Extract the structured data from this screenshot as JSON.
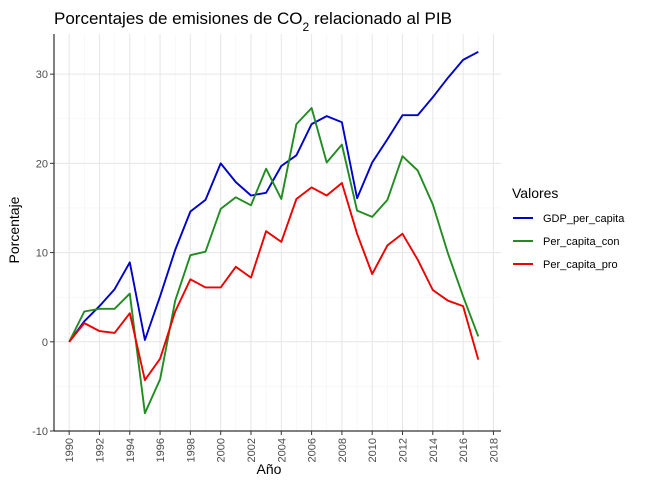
{
  "chart_data": {
    "type": "line",
    "title_prefix": "Porcentajes de emisiones de CO",
    "title_subscript": "2",
    "title_suffix": " relacionado al PIB",
    "xlabel": "Año",
    "ylabel": "Porcentaje",
    "xlim": [
      1989,
      2018.5
    ],
    "ylim": [
      -10,
      34.5
    ],
    "x_ticks": [
      1990,
      1992,
      1994,
      1996,
      1998,
      2000,
      2002,
      2004,
      2006,
      2008,
      2010,
      2012,
      2014,
      2016,
      2018
    ],
    "y_ticks": [
      -10,
      0,
      10,
      20,
      30
    ],
    "grid": true,
    "legend_title": "Valores",
    "legend_position": "right",
    "x": [
      1990,
      1991,
      1992,
      1993,
      1994,
      1995,
      1996,
      1997,
      1998,
      1999,
      2000,
      2001,
      2002,
      2003,
      2004,
      2005,
      2006,
      2007,
      2008,
      2009,
      2010,
      2011,
      2012,
      2013,
      2014,
      2015,
      2016,
      2017
    ],
    "series": [
      {
        "name": "GDP_per_capita",
        "color": "#0000cd",
        "values": [
          0,
          2.3,
          4.0,
          5.9,
          8.9,
          0.2,
          5.1,
          10.3,
          14.6,
          15.9,
          20.0,
          17.9,
          16.4,
          16.7,
          19.7,
          20.9,
          24.4,
          25.3,
          24.6,
          16.1,
          20.1,
          22.7,
          25.4,
          25.4,
          27.4,
          29.6,
          31.6,
          32.5
        ]
      },
      {
        "name": "Per_capita_con",
        "color": "#228b22",
        "values": [
          0,
          3.4,
          3.7,
          3.7,
          5.4,
          -8.0,
          -4.2,
          4.6,
          9.7,
          10.1,
          14.9,
          16.2,
          15.3,
          19.4,
          16.0,
          24.4,
          26.2,
          20.1,
          22.1,
          14.7,
          14.0,
          15.9,
          20.8,
          19.2,
          15.4,
          9.9,
          5.1,
          0.6
        ]
      },
      {
        "name": "Per_capita_pro",
        "color": "#ee0000",
        "values": [
          0,
          2.1,
          1.2,
          1.0,
          3.2,
          -4.3,
          -1.9,
          3.4,
          7.0,
          6.1,
          6.1,
          8.4,
          7.2,
          12.4,
          11.2,
          16.0,
          17.3,
          16.4,
          17.8,
          12.1,
          7.6,
          10.8,
          12.1,
          9.2,
          5.8,
          4.6,
          4.0,
          -2.0
        ]
      }
    ]
  }
}
